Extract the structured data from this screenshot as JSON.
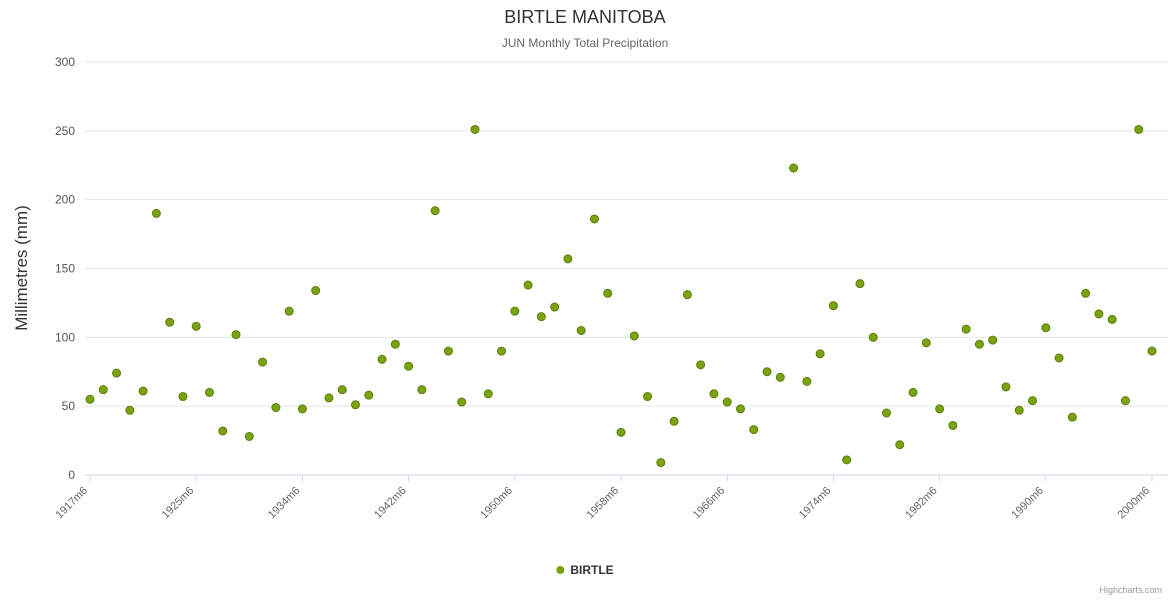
{
  "title": "BIRTLE MANITOBA",
  "subtitle": "JUN Monthly Total Precipitation",
  "y_axis_title": "Millimetres (mm)",
  "legend": {
    "label": "BIRTLE"
  },
  "credits": "Highcharts.com",
  "colors": {
    "point_fill": "#79a410",
    "point_stroke": "#5c7d0e",
    "grid": "#e6e6e6",
    "axis_line": "#ccd6eb",
    "title_text": "#333333",
    "subtitle_text": "#666666",
    "y_label_text": "#555555",
    "x_label_text": "#666666"
  },
  "chart_data": {
    "type": "scatter",
    "title": "BIRTLE MANITOBA",
    "subtitle": "JUN Monthly Total Precipitation",
    "xlabel": "",
    "ylabel": "Millimetres (mm)",
    "ylim": [
      0,
      300
    ],
    "y_ticks": [
      0,
      50,
      100,
      150,
      200,
      250,
      300
    ],
    "grid": true,
    "legend_position": "bottom",
    "x_tick_labels": [
      "1917m6",
      "1925m6",
      "1934m6",
      "1942m6",
      "1950m6",
      "1958m6",
      "1966m6",
      "1974m6",
      "1982m6",
      "1990m6",
      "2000m6"
    ],
    "x_tick_indices": [
      0,
      8,
      16,
      24,
      32,
      40,
      48,
      56,
      64,
      72,
      80
    ],
    "series": [
      {
        "name": "BIRTLE",
        "color": "#79a410",
        "values": [
          55,
          62,
          74,
          47,
          61,
          190,
          111,
          57,
          108,
          60,
          32,
          102,
          28,
          82,
          49,
          119,
          48,
          134,
          56,
          62,
          51,
          58,
          84,
          95,
          79,
          62,
          192,
          90,
          53,
          251,
          59,
          90,
          119,
          138,
          115,
          122,
          157,
          105,
          186,
          132,
          31,
          101,
          57,
          9,
          39,
          131,
          80,
          59,
          53,
          48,
          33,
          75,
          71,
          223,
          68,
          88,
          123,
          11,
          139,
          100,
          45,
          22,
          60,
          96,
          48,
          36,
          106,
          95,
          98,
          64,
          47,
          54,
          107,
          85,
          42,
          132,
          117,
          113,
          54,
          251,
          90
        ]
      }
    ]
  }
}
